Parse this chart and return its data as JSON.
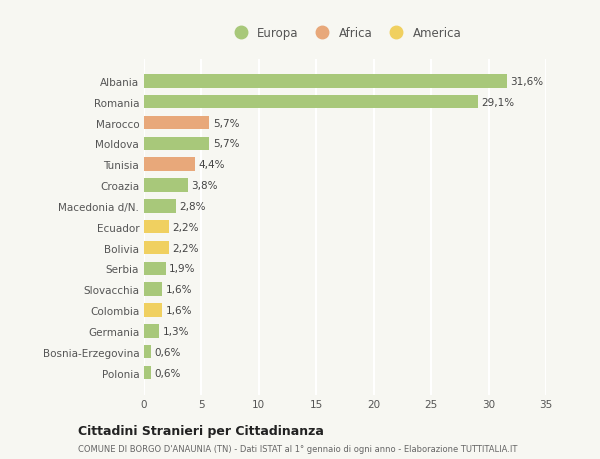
{
  "categories": [
    "Albania",
    "Romania",
    "Marocco",
    "Moldova",
    "Tunisia",
    "Croazia",
    "Macedonia d/N.",
    "Ecuador",
    "Bolivia",
    "Serbia",
    "Slovacchia",
    "Colombia",
    "Germania",
    "Bosnia-Erzegovina",
    "Polonia"
  ],
  "values": [
    31.6,
    29.1,
    5.7,
    5.7,
    4.4,
    3.8,
    2.8,
    2.2,
    2.2,
    1.9,
    1.6,
    1.6,
    1.3,
    0.6,
    0.6
  ],
  "labels": [
    "31,6%",
    "29,1%",
    "5,7%",
    "5,7%",
    "4,4%",
    "3,8%",
    "2,8%",
    "2,2%",
    "2,2%",
    "1,9%",
    "1,6%",
    "1,6%",
    "1,3%",
    "0,6%",
    "0,6%"
  ],
  "continent": [
    "Europa",
    "Europa",
    "Africa",
    "Europa",
    "Africa",
    "Europa",
    "Europa",
    "America",
    "America",
    "Europa",
    "Europa",
    "America",
    "Europa",
    "Europa",
    "Europa"
  ],
  "color_europa": "#a8c87a",
  "color_africa": "#e8a87a",
  "color_america": "#f0d060",
  "background_color": "#f7f7f2",
  "grid_color": "#ffffff",
  "xlim": [
    0,
    35
  ],
  "xticks": [
    0,
    5,
    10,
    15,
    20,
    25,
    30,
    35
  ],
  "title": "Cittadini Stranieri per Cittadinanza",
  "subtitle": "COMUNE DI BORGO D'ANAUNIA (TN) - Dati ISTAT al 1° gennaio di ogni anno - Elaborazione TUTTITALIA.IT",
  "legend_labels": [
    "Europa",
    "Africa",
    "America"
  ],
  "bar_height": 0.65
}
